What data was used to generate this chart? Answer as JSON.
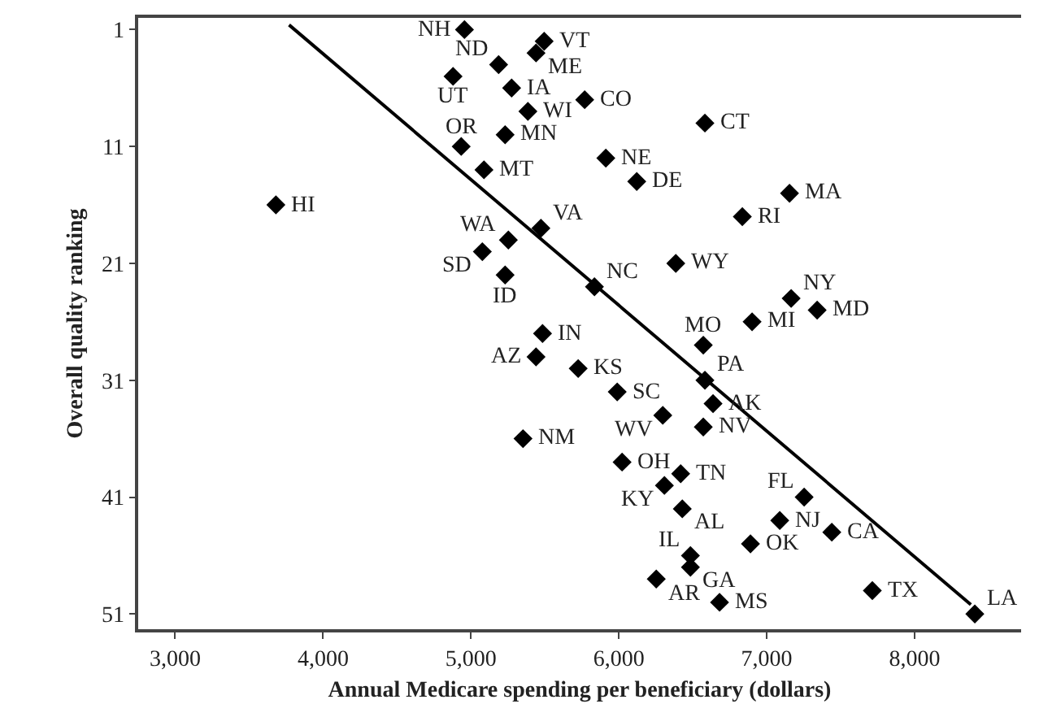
{
  "chart_data": {
    "type": "scatter",
    "xlabel": "Annual Medicare spending per beneficiary (dollars)",
    "ylabel": "Overall quality ranking",
    "xlim": [
      2750,
      8720
    ],
    "xticks": [
      {
        "value": 3000,
        "label": "3,000"
      },
      {
        "value": 4000,
        "label": "4,000"
      },
      {
        "value": 5000,
        "label": "5,000"
      },
      {
        "value": 6000,
        "label": "6,000"
      },
      {
        "value": 7000,
        "label": "7,000"
      },
      {
        "value": 8000,
        "label": "8,000"
      }
    ],
    "ylim": [
      52.3,
      0
    ],
    "yticks": [
      1,
      11,
      21,
      31,
      41,
      51
    ],
    "series": [
      {
        "color": "#000000",
        "marker": "diamond",
        "x": [
          4956,
          5495,
          5187,
          5440,
          4879,
          5275,
          5769,
          5385,
          5231,
          4934,
          5088,
          3681,
          5473,
          5253,
          5077,
          5231,
          5835,
          5484,
          6582,
          5912,
          6121,
          7154,
          6835,
          6385,
          7165,
          7341,
          6901,
          6571,
          5440,
          5725,
          5352,
          6582,
          5989,
          6637,
          6297,
          6571,
          6022,
          6418,
          6308,
          7253,
          6429,
          7088,
          7440,
          6890,
          6484,
          6484,
          6253,
          7714,
          6681,
          8407
        ],
        "values": [
          1,
          2,
          4,
          3,
          5,
          6,
          7,
          8,
          10,
          11,
          13,
          16,
          18,
          19,
          20,
          22,
          23,
          27,
          9,
          12,
          14,
          15,
          17,
          21,
          24,
          25,
          26,
          28,
          29,
          30,
          36,
          31,
          32,
          33,
          34,
          35,
          38,
          39,
          40,
          41,
          42,
          43,
          44,
          45,
          46,
          47,
          48,
          49,
          50,
          51
        ]
      },
      {
        "type": "line",
        "color": "#000000",
        "marker": "none",
        "line_style": "solid",
        "x": [
          3770,
          8380
        ],
        "values": [
          0.6,
          50.2
        ]
      }
    ],
    "annotations": [
      {
        "text": "NH",
        "x": 4956,
        "y": 1
      },
      {
        "text": "VT",
        "x": 5495,
        "y": 2
      },
      {
        "text": "ND",
        "x": 5187,
        "y": 4
      },
      {
        "text": "ME",
        "x": 5440,
        "y": 3
      },
      {
        "text": "UT",
        "x": 4879,
        "y": 5
      },
      {
        "text": "IA",
        "x": 5275,
        "y": 6
      },
      {
        "text": "CO",
        "x": 5769,
        "y": 7
      },
      {
        "text": "WI",
        "x": 5385,
        "y": 8
      },
      {
        "text": "MN",
        "x": 5231,
        "y": 10
      },
      {
        "text": "OR",
        "x": 4934,
        "y": 11
      },
      {
        "text": "MT",
        "x": 5088,
        "y": 13
      },
      {
        "text": "HI",
        "x": 3681,
        "y": 16
      },
      {
        "text": "VA",
        "x": 5473,
        "y": 18
      },
      {
        "text": "WA",
        "x": 5253,
        "y": 19
      },
      {
        "text": "SD",
        "x": 5077,
        "y": 20
      },
      {
        "text": "ID",
        "x": 5231,
        "y": 22
      },
      {
        "text": "NC",
        "x": 5835,
        "y": 23
      },
      {
        "text": "IN",
        "x": 5484,
        "y": 27
      },
      {
        "text": "CT",
        "x": 6582,
        "y": 9
      },
      {
        "text": "NE",
        "x": 5912,
        "y": 12
      },
      {
        "text": "DE",
        "x": 6121,
        "y": 14
      },
      {
        "text": "MA",
        "x": 7154,
        "y": 15
      },
      {
        "text": "RI",
        "x": 6835,
        "y": 17
      },
      {
        "text": "WY",
        "x": 6385,
        "y": 21
      },
      {
        "text": "NY",
        "x": 7165,
        "y": 24
      },
      {
        "text": "MD",
        "x": 7341,
        "y": 25
      },
      {
        "text": "MI",
        "x": 6901,
        "y": 26
      },
      {
        "text": "MO",
        "x": 6571,
        "y": 28
      },
      {
        "text": "AZ",
        "x": 5440,
        "y": 29
      },
      {
        "text": "KS",
        "x": 5725,
        "y": 30
      },
      {
        "text": "NM",
        "x": 5352,
        "y": 36
      },
      {
        "text": "PA",
        "x": 6582,
        "y": 31
      },
      {
        "text": "SC",
        "x": 5989,
        "y": 32
      },
      {
        "text": "AK",
        "x": 6637,
        "y": 33
      },
      {
        "text": "WV",
        "x": 6297,
        "y": 34
      },
      {
        "text": "NV",
        "x": 6571,
        "y": 35
      },
      {
        "text": "OH",
        "x": 6022,
        "y": 38
      },
      {
        "text": "TN",
        "x": 6418,
        "y": 39
      },
      {
        "text": "KY",
        "x": 6308,
        "y": 40
      },
      {
        "text": "FL",
        "x": 7253,
        "y": 41
      },
      {
        "text": "AL",
        "x": 6429,
        "y": 42
      },
      {
        "text": "NJ",
        "x": 7088,
        "y": 43
      },
      {
        "text": "CA",
        "x": 7440,
        "y": 44
      },
      {
        "text": "OK",
        "x": 6890,
        "y": 45
      },
      {
        "text": "IL",
        "x": 6484,
        "y": 46
      },
      {
        "text": "GA",
        "x": 6484,
        "y": 47
      },
      {
        "text": "AR",
        "x": 6253,
        "y": 48
      },
      {
        "text": "TX",
        "x": 7714,
        "y": 49
      },
      {
        "text": "MS",
        "x": 6681,
        "y": 50
      },
      {
        "text": "LA",
        "x": 8407,
        "y": 51
      }
    ]
  }
}
